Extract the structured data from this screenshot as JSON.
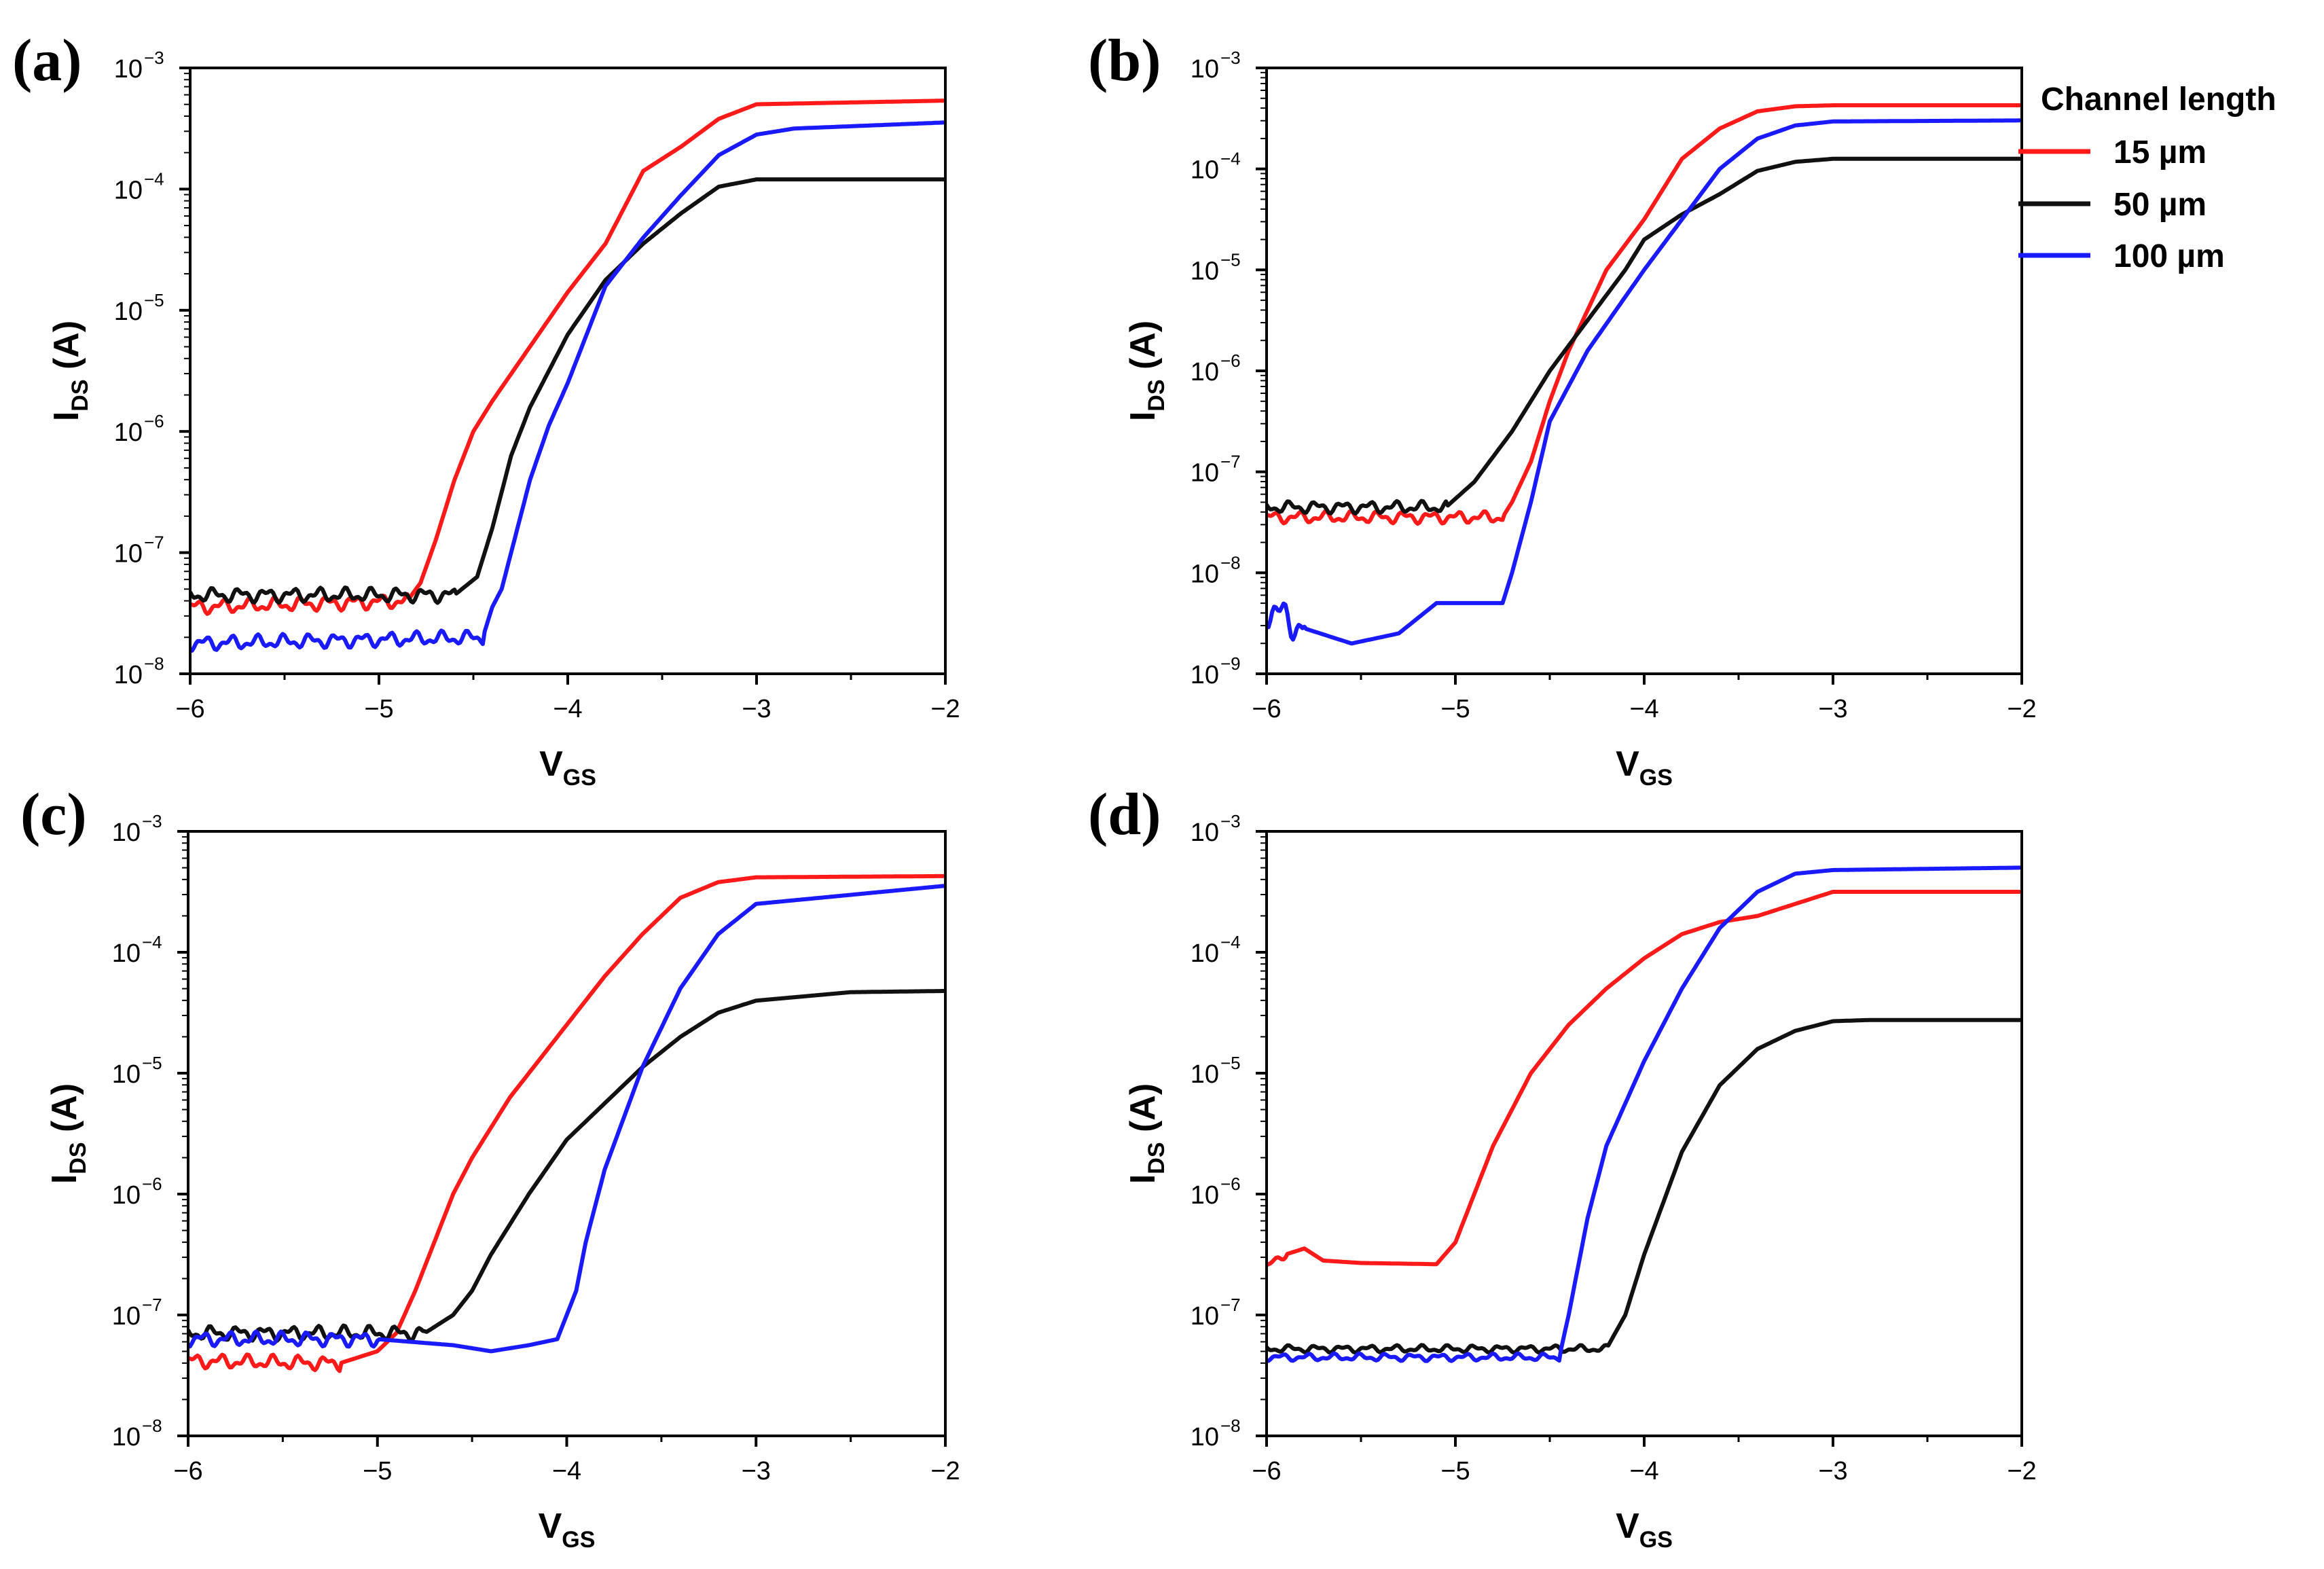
{
  "chart_data": [
    {
      "type": "line",
      "panel": "(a)",
      "xlabel": {
        "main": "V",
        "sub": "GS"
      },
      "ylabel": {
        "main": "I",
        "sub": "DS",
        "suffix": " (A)"
      },
      "yscale": "log",
      "xlim": [
        -6,
        -2
      ],
      "ylim_exponent": [
        -8,
        -3
      ],
      "xticks": [
        -6,
        -5,
        -4,
        -3,
        -2
      ],
      "xtick_labels": [
        "−6",
        "−5",
        "−4",
        "−3",
        "−2"
      ],
      "ytick_exponents": [
        -8,
        -7,
        -6,
        -5,
        -4,
        -3
      ],
      "ytick_base": "10",
      "ytick_exponent_labels": [
        "−8",
        "−7",
        "−6",
        "−5",
        "−4",
        "−3"
      ],
      "noise_amplitude": 0.04,
      "series": [
        {
          "name": "15 µm",
          "color": "#ff1a1a",
          "x": [
            -6.0,
            -4.85,
            -4.78,
            -4.7,
            -4.6,
            -4.5,
            -4.4,
            -4.2,
            -4.0,
            -3.8,
            -3.6,
            -3.4,
            -3.2,
            -3.0,
            -2.0
          ],
          "y_exponent": [
            -7.45,
            -7.4,
            -7.25,
            -6.9,
            -6.4,
            -6.0,
            -5.75,
            -5.3,
            -4.85,
            -4.45,
            -3.85,
            -3.65,
            -3.42,
            -3.3,
            -3.27
          ]
        },
        {
          "name": "50 µm",
          "color": "#111111",
          "x": [
            -6.0,
            -4.6,
            -4.48,
            -4.4,
            -4.3,
            -4.2,
            -4.1,
            -4.0,
            -3.8,
            -3.6,
            -3.4,
            -3.2,
            -3.0,
            -2.0
          ],
          "y_exponent": [
            -7.35,
            -7.35,
            -7.2,
            -6.8,
            -6.2,
            -5.8,
            -5.5,
            -5.2,
            -4.75,
            -4.45,
            -4.2,
            -3.98,
            -3.92,
            -3.92
          ]
        },
        {
          "name": "100 µm",
          "color": "#1a1aff",
          "x": [
            -6.0,
            -4.45,
            -4.4,
            -4.35,
            -4.3,
            -4.2,
            -4.1,
            -4.0,
            -3.8,
            -3.6,
            -3.4,
            -3.2,
            -3.0,
            -2.8,
            -2.0
          ],
          "y_exponent": [
            -7.75,
            -7.7,
            -7.45,
            -7.3,
            -7.0,
            -6.4,
            -5.95,
            -5.6,
            -4.8,
            -4.4,
            -4.05,
            -3.72,
            -3.55,
            -3.5,
            -3.45
          ]
        }
      ]
    },
    {
      "type": "line",
      "panel": "(b)",
      "xlabel": {
        "main": "V",
        "sub": "GS"
      },
      "ylabel": {
        "main": "I",
        "sub": "DS",
        "suffix": " (A)"
      },
      "yscale": "log",
      "xlim": [
        -6,
        -2
      ],
      "ylim_exponent": [
        -9,
        -3
      ],
      "xticks": [
        -6,
        -5,
        -4,
        -3,
        -2
      ],
      "xtick_labels": [
        "−6",
        "−5",
        "−4",
        "−3",
        "−2"
      ],
      "ytick_exponents": [
        -9,
        -8,
        -7,
        -6,
        -5,
        -4,
        -3
      ],
      "ytick_base": "10",
      "ytick_exponent_labels": [
        "−9",
        "−8",
        "−7",
        "−6",
        "−5",
        "−4",
        "−3"
      ],
      "noise_amplitude": 0.04,
      "series": [
        {
          "name": "15 µm",
          "color": "#ff1a1a",
          "x": [
            -6.0,
            -4.75,
            -4.7,
            -4.6,
            -4.5,
            -4.4,
            -4.2,
            -4.0,
            -3.8,
            -3.6,
            -3.4,
            -3.2,
            -3.0,
            -2.0
          ],
          "y_exponent": [
            -7.45,
            -7.45,
            -7.3,
            -6.9,
            -6.3,
            -5.8,
            -5.0,
            -4.5,
            -3.9,
            -3.6,
            -3.43,
            -3.38,
            -3.37,
            -3.37
          ]
        },
        {
          "name": "50 µm",
          "color": "#111111",
          "x": [
            -6.0,
            -5.05,
            -4.9,
            -4.7,
            -4.5,
            -4.3,
            -4.1,
            -4.0,
            -3.8,
            -3.6,
            -3.4,
            -3.2,
            -3.0,
            -2.0
          ],
          "y_exponent": [
            -7.35,
            -7.35,
            -7.1,
            -6.6,
            -6.0,
            -5.5,
            -5.0,
            -4.7,
            -4.45,
            -4.25,
            -4.02,
            -3.93,
            -3.9,
            -3.9
          ]
        },
        {
          "name": "100 µm",
          "color": "#1a1aff",
          "x": [
            -6.0,
            -5.8,
            -5.55,
            -5.3,
            -5.1,
            -4.75,
            -4.7,
            -4.6,
            -4.5,
            -4.3,
            -4.0,
            -3.8,
            -3.6,
            -3.4,
            -3.2,
            -3.0,
            -2.0
          ],
          "y_exponent": [
            -8.35,
            -8.55,
            -8.7,
            -8.6,
            -8.3,
            -8.3,
            -8.0,
            -7.3,
            -6.5,
            -5.8,
            -5.0,
            -4.5,
            -4.0,
            -3.7,
            -3.57,
            -3.53,
            -3.52
          ]
        }
      ]
    },
    {
      "type": "line",
      "panel": "(c)",
      "xlabel": {
        "main": "V",
        "sub": "GS"
      },
      "ylabel": {
        "main": "I",
        "sub": "DS",
        "suffix": " (A)"
      },
      "yscale": "log",
      "xlim": [
        -6,
        -2
      ],
      "ylim_exponent": [
        -8,
        -3
      ],
      "xticks": [
        -6,
        -5,
        -4,
        -3,
        -2
      ],
      "xtick_labels": [
        "−6",
        "−5",
        "−4",
        "−3",
        "−2"
      ],
      "ytick_exponents": [
        -8,
        -7,
        -6,
        -5,
        -4,
        -3
      ],
      "ytick_base": "10",
      "ytick_exponent_labels": [
        "−8",
        "−7",
        "−6",
        "−5",
        "−4",
        "−3"
      ],
      "noise_amplitude": 0.04,
      "series": [
        {
          "name": "15 µm",
          "color": "#ff1a1a",
          "x": [
            -6.0,
            -5.2,
            -5.0,
            -4.9,
            -4.8,
            -4.7,
            -4.6,
            -4.5,
            -4.3,
            -4.0,
            -3.8,
            -3.6,
            -3.4,
            -3.2,
            -3.0,
            -2.0
          ],
          "y_exponent": [
            -7.38,
            -7.4,
            -7.3,
            -7.15,
            -6.8,
            -6.4,
            -6.0,
            -5.7,
            -5.2,
            -4.6,
            -4.2,
            -3.85,
            -3.55,
            -3.42,
            -3.38,
            -3.37
          ]
        },
        {
          "name": "50 µm",
          "color": "#111111",
          "x": [
            -6.0,
            -4.75,
            -4.6,
            -4.5,
            -4.4,
            -4.2,
            -4.0,
            -3.8,
            -3.6,
            -3.4,
            -3.2,
            -3.0,
            -2.5,
            -2.0
          ],
          "y_exponent": [
            -7.15,
            -7.15,
            -7.0,
            -6.8,
            -6.5,
            -6.0,
            -5.55,
            -5.25,
            -4.95,
            -4.7,
            -4.5,
            -4.4,
            -4.33,
            -4.32
          ]
        },
        {
          "name": "100 µm",
          "color": "#1a1aff",
          "x": [
            -6.0,
            -5.0,
            -4.6,
            -4.4,
            -4.2,
            -4.05,
            -4.0,
            -3.95,
            -3.9,
            -3.8,
            -3.6,
            -3.4,
            -3.2,
            -3.0,
            -2.0
          ],
          "y_exponent": [
            -7.2,
            -7.2,
            -7.25,
            -7.3,
            -7.25,
            -7.2,
            -7.0,
            -6.8,
            -6.4,
            -5.8,
            -4.95,
            -4.3,
            -3.85,
            -3.6,
            -3.45
          ]
        }
      ]
    },
    {
      "type": "line",
      "panel": "(d)",
      "xlabel": {
        "main": "V",
        "sub": "GS"
      },
      "ylabel": {
        "main": "I",
        "sub": "DS",
        "suffix": " (A)"
      },
      "yscale": "log",
      "xlim": [
        -6,
        -2
      ],
      "ylim_exponent": [
        -8,
        -3
      ],
      "xticks": [
        -6,
        -5,
        -4,
        -3,
        -2
      ],
      "xtick_labels": [
        "−6",
        "−5",
        "−4",
        "−3",
        "−2"
      ],
      "ytick_exponents": [
        -8,
        -7,
        -6,
        -5,
        -4,
        -3
      ],
      "ytick_base": "10",
      "ytick_exponent_labels": [
        "−8",
        "−7",
        "−6",
        "−5",
        "−4",
        "−3"
      ],
      "noise_amplitude": 0.02,
      "series": [
        {
          "name": "15 µm",
          "color": "#ff1a1a",
          "x": [
            -6.0,
            -5.9,
            -5.8,
            -5.7,
            -5.5,
            -5.1,
            -5.0,
            -4.9,
            -4.8,
            -4.6,
            -4.4,
            -4.2,
            -4.0,
            -3.8,
            -3.6,
            -3.4,
            -3.2,
            -3.0,
            -2.0
          ],
          "y_exponent": [
            -6.6,
            -6.5,
            -6.45,
            -6.55,
            -6.57,
            -6.58,
            -6.4,
            -6.0,
            -5.6,
            -5.0,
            -4.6,
            -4.3,
            -4.05,
            -3.85,
            -3.75,
            -3.7,
            -3.6,
            -3.5,
            -3.5
          ]
        },
        {
          "name": "50 µm",
          "color": "#111111",
          "x": [
            -6.0,
            -4.2,
            -4.1,
            -4.0,
            -3.8,
            -3.6,
            -3.4,
            -3.2,
            -3.0,
            -2.8,
            -2.0
          ],
          "y_exponent": [
            -7.28,
            -7.28,
            -7.0,
            -6.5,
            -5.65,
            -5.1,
            -4.8,
            -4.65,
            -4.57,
            -4.56,
            -4.56
          ]
        },
        {
          "name": "100 µm",
          "color": "#1a1aff",
          "x": [
            -6.0,
            -4.45,
            -4.4,
            -4.3,
            -4.2,
            -4.0,
            -3.8,
            -3.6,
            -3.4,
            -3.2,
            -3.0,
            -2.0
          ],
          "y_exponent": [
            -7.35,
            -7.35,
            -7.0,
            -6.2,
            -5.6,
            -4.9,
            -4.3,
            -3.8,
            -3.5,
            -3.35,
            -3.32,
            -3.3
          ]
        }
      ]
    }
  ],
  "legend": {
    "title": "Channel length",
    "entries": [
      {
        "label": "15 µm",
        "color": "#ff1a1a"
      },
      {
        "label": "50 µm",
        "color": "#111111"
      },
      {
        "label": "100 µm",
        "color": "#1a1aff"
      }
    ]
  }
}
